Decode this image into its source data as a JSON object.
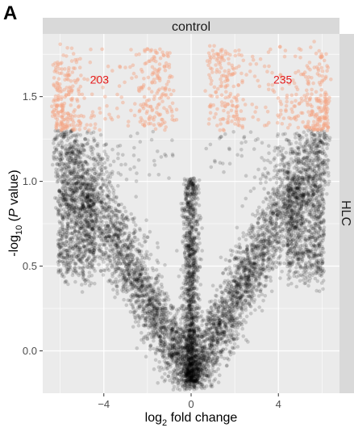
{
  "panel_label": "A",
  "chart_data": {
    "type": "scatter",
    "subtype": "volcano",
    "facet_top": "control",
    "facet_right": "HLC",
    "xlabel": {
      "base": "log",
      "sub": "2",
      "rest": " fold change"
    },
    "ylabel": {
      "base": "-log",
      "sub": "10",
      "open": " (",
      "italic": "P",
      "close": " value)"
    },
    "xlim": [
      -6.8,
      6.8
    ],
    "ylim": [
      -0.25,
      1.87
    ],
    "x_ticks": [
      -4,
      0,
      4
    ],
    "x_tick_labels": [
      "−4",
      "0",
      "4"
    ],
    "y_ticks": [
      0.0,
      0.5,
      1.0,
      1.5
    ],
    "y_tick_labels": [
      "0.0",
      "0.5",
      "1.0",
      "1.5"
    ],
    "significance_threshold_y": 1.3,
    "counts": [
      {
        "label": "203",
        "x": -4.2,
        "y": 1.6,
        "side": "down"
      },
      {
        "label": "235",
        "x": 4.2,
        "y": 1.6,
        "side": "up"
      }
    ],
    "colors": {
      "significant": "#f4a582",
      "nonsignificant": "#000000",
      "panel_bg": "#ebebeb",
      "strip_bg": "#d9d9d9",
      "count_text": "#e41a1c"
    },
    "grid": true,
    "legend": "none"
  }
}
